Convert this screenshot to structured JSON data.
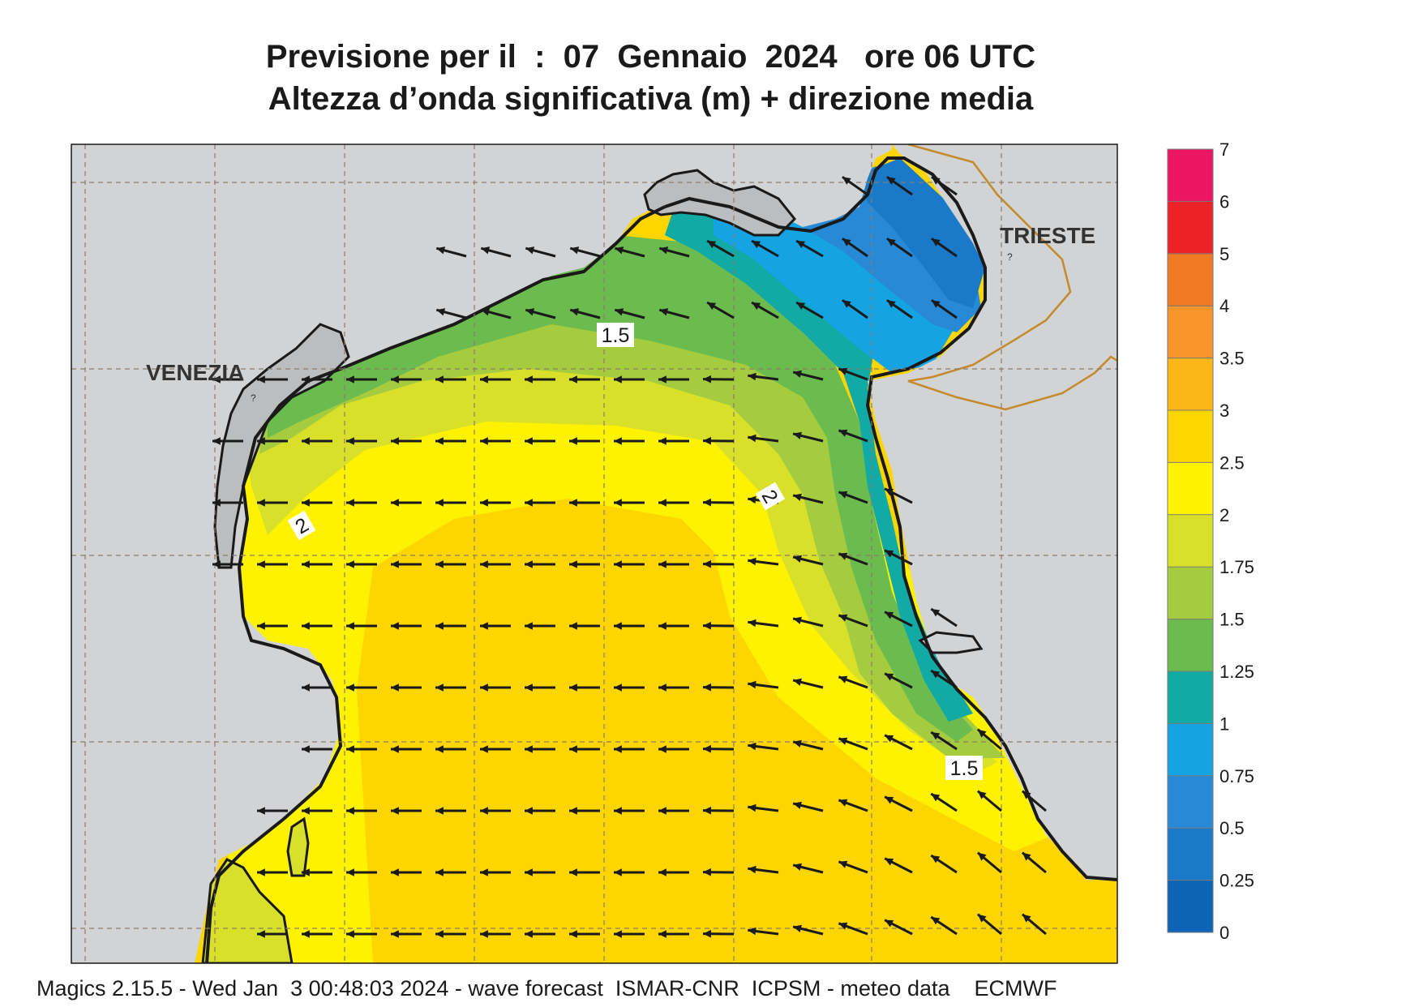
{
  "title_line1": "Previsione per il  :  07  Gennaio  2024   ore 06 UTC",
  "title_line2": "Altezza d’onda significativa (m) + direzione media",
  "footer": "Magics 2.15.5 - Wed Jan  3 00:48:03 2024 - wave forecast  ISMAR-CNR  ICPSM - meteo data    ECMWF",
  "cities": [
    {
      "name": "VENEZIA"
    },
    {
      "name": "TRIESTE"
    }
  ],
  "contour_labels": [
    "1.5",
    "2",
    "2",
    "1.5"
  ],
  "legend": {
    "tick_labels": [
      "0",
      "0.25",
      "0.5",
      "0.75",
      "1",
      "1.25",
      "1.5",
      "1.75",
      "2",
      "2.5",
      "3",
      "3.5",
      "4",
      "5",
      "6",
      "7"
    ],
    "colors": [
      "#0d63b5",
      "#1a79c9",
      "#2889d6",
      "#14a3e3",
      "#11aaa4",
      "#6cbb4e",
      "#a4cc3e",
      "#d9e02a",
      "#fff200",
      "#fdd602",
      "#fbb617",
      "#f8952b",
      "#f07a24",
      "#ec2227",
      "#ea1660"
    ]
  },
  "map_colors": {
    "land": "#d2d3d5",
    "coast": "#1a1a1a",
    "border": "#c48a2c",
    "arrow": "#1a1a1a",
    "grid": "#8c7b6b"
  },
  "wave_direction": "from east/south-east toward west/north-west"
}
